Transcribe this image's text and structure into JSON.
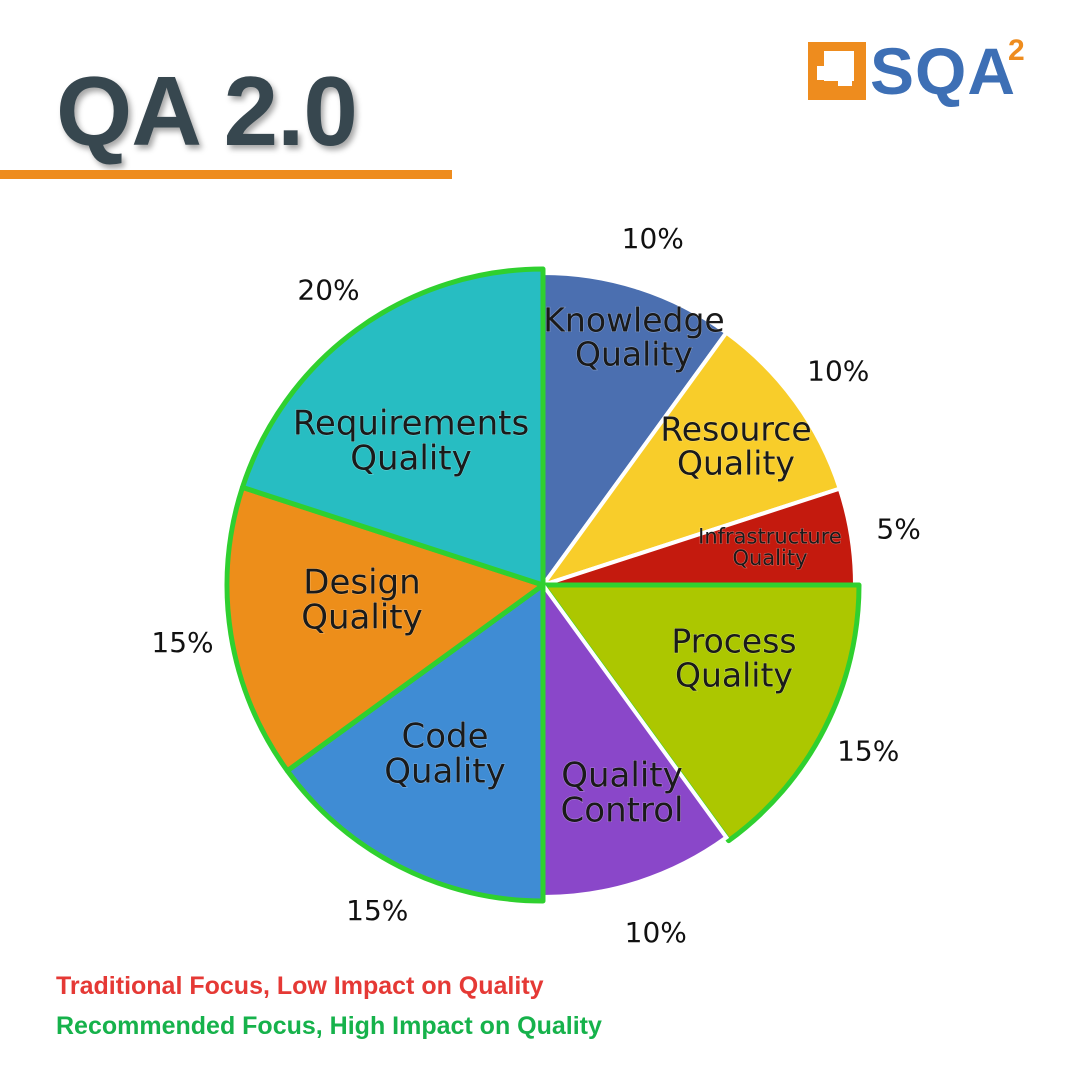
{
  "header": {
    "title": "QA 2.0",
    "title_color": "#37474f",
    "rule_color": "#ee8c1e"
  },
  "logo": {
    "text": "SQA",
    "superscript": "2",
    "text_color": "#3d6fb5",
    "mark_color": "#ee8c1e"
  },
  "legend": [
    {
      "label": "Traditional Focus, Low Impact on Quality",
      "color": "#e53935"
    },
    {
      "label": "Recommended Focus, High Impact on Quality",
      "color": "#16b24b"
    }
  ],
  "chart_data": {
    "type": "pie",
    "start": "12 o'clock",
    "direction": "clockwise",
    "highlight_color": "#2fd02f",
    "slices": [
      {
        "label": "Knowledge Quality",
        "lines": [
          "Knowledge",
          "Quality"
        ],
        "value": 10,
        "value_label": "10%",
        "color": "#4b6fb0",
        "focus": "traditional"
      },
      {
        "label": "Resource Quality",
        "lines": [
          "Resource",
          "Quality"
        ],
        "value": 10,
        "value_label": "10%",
        "color": "#f8cd2a",
        "focus": "traditional"
      },
      {
        "label": "Infrastructure Quality",
        "lines": [
          "Infrastructure",
          "Quality"
        ],
        "value": 5,
        "value_label": "5%",
        "color": "#c41a0e",
        "focus": "traditional"
      },
      {
        "label": "Process Quality",
        "lines": [
          "Process",
          "Quality"
        ],
        "value": 15,
        "value_label": "15%",
        "color": "#acc700",
        "focus": "recommended"
      },
      {
        "label": "Quality Control",
        "lines": [
          "Quality",
          "Control"
        ],
        "value": 10,
        "value_label": "10%",
        "color": "#8a47c9",
        "focus": "traditional"
      },
      {
        "label": "Code Quality",
        "lines": [
          "Code",
          "Quality"
        ],
        "value": 15,
        "value_label": "15%",
        "color": "#3f8cd4",
        "focus": "recommended"
      },
      {
        "label": "Design Quality",
        "lines": [
          "Design",
          "Quality"
        ],
        "value": 15,
        "value_label": "15%",
        "color": "#ed8e1a",
        "focus": "recommended"
      },
      {
        "label": "Requirements Quality",
        "lines": [
          "Requirements",
          "Quality"
        ],
        "value": 20,
        "value_label": "20%",
        "color": "#27bdc2",
        "focus": "recommended"
      }
    ]
  }
}
